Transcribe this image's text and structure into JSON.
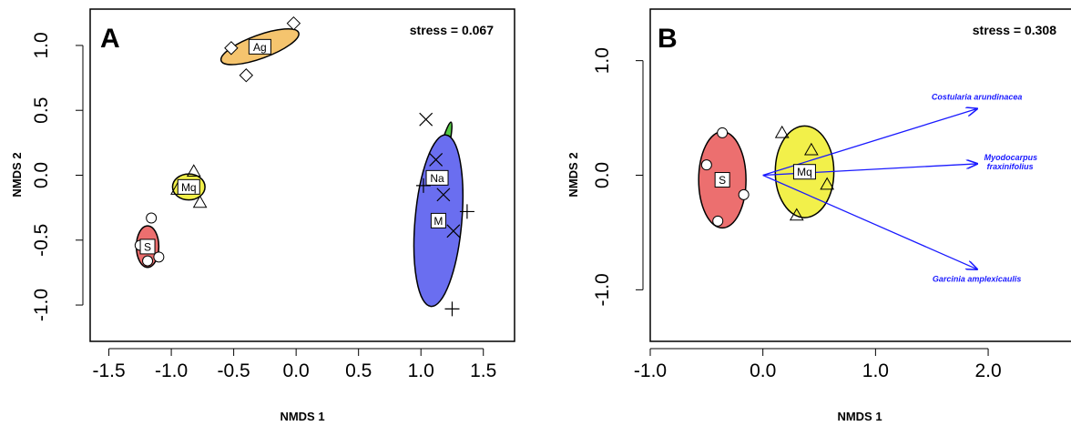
{
  "chart_data": [
    {
      "type": "scatter",
      "panel_label": "A",
      "stress": "stress = 0.067",
      "xlabel": "NMDS 1",
      "ylabel": "NMDS 2",
      "xlim": [
        -1.65,
        1.75
      ],
      "ylim": [
        -1.28,
        1.28
      ],
      "x_ticks": [
        -1.5,
        -1.0,
        -0.5,
        0.0,
        0.5,
        1.0,
        1.5
      ],
      "x_tick_labels": [
        "-1.5",
        "-1.0",
        "-0.5",
        "0.0",
        "0.5",
        "1.0",
        "1.5"
      ],
      "y_ticks": [
        -1.0,
        -0.5,
        0.0,
        0.5,
        1.0
      ],
      "y_tick_labels": [
        "-1.0",
        "-0.5",
        "0.0",
        "0.5",
        "1.0"
      ],
      "groups": [
        {
          "label": "Ag",
          "color": "#f5c46e",
          "marker": "diamond",
          "center": [
            -0.29,
            0.99
          ],
          "ellipse_rx": 0.33,
          "ellipse_ry": 0.09,
          "ellipse_angle": 20,
          "points": [
            [
              -0.02,
              1.17
            ],
            [
              -0.52,
              0.98
            ],
            [
              -0.4,
              0.77
            ]
          ]
        },
        {
          "label": "Mq",
          "color": "#f2f04a",
          "marker": "triangle",
          "center": [
            -0.86,
            -0.09
          ],
          "ellipse_rx": 0.13,
          "ellipse_ry": 0.1,
          "ellipse_angle": 0,
          "points": [
            [
              -0.82,
              0.03
            ],
            [
              -0.95,
              -0.11
            ],
            [
              -0.77,
              -0.21
            ]
          ]
        },
        {
          "label": "S",
          "color": "#ec6f6f",
          "marker": "circle",
          "center": [
            -1.19,
            -0.55
          ],
          "ellipse_rx": 0.09,
          "ellipse_ry": 0.16,
          "ellipse_angle": 0,
          "points": [
            [
              -1.16,
              -0.33
            ],
            [
              -1.25,
              -0.54
            ],
            [
              -1.1,
              -0.63
            ],
            [
              -1.19,
              -0.66
            ]
          ]
        },
        {
          "label": "Na",
          "color": "#55c945",
          "marker": "x",
          "center": [
            1.13,
            -0.02
          ],
          "ellipse_rx": 0.46,
          "ellipse_ry": 0.04,
          "ellipse_angle": 76,
          "points": [
            [
              1.04,
              0.43
            ],
            [
              1.12,
              0.12
            ],
            [
              1.18,
              -0.15
            ],
            [
              1.26,
              -0.43
            ]
          ]
        },
        {
          "label": "M",
          "color": "#6a6ef0",
          "marker": "plus",
          "center": [
            1.14,
            -0.35
          ],
          "ellipse_rx": 0.69,
          "ellipse_ry": 0.18,
          "ellipse_angle": 85,
          "points": [
            [
              1.02,
              -0.08
            ],
            [
              1.37,
              -0.28
            ],
            [
              1.25,
              -1.03
            ]
          ]
        }
      ]
    },
    {
      "type": "scatter",
      "panel_label": "B",
      "stress": "stress = 0.308",
      "xlabel": "NMDS 1",
      "ylabel": "NMDS 2",
      "xlim": [
        -1.0,
        2.8
      ],
      "ylim": [
        -1.45,
        1.45
      ],
      "x_ticks": [
        -1.0,
        0.0,
        1.0,
        2.0
      ],
      "x_tick_labels": [
        "-1.0",
        "0.0",
        "1.0",
        "2.0"
      ],
      "y_ticks": [
        -1.0,
        0.0,
        1.0
      ],
      "y_tick_labels": [
        "-1.0",
        "0.0",
        "1.0"
      ],
      "groups": [
        {
          "label": "S",
          "color": "#ec6f6f",
          "marker": "circle",
          "center": [
            -0.36,
            -0.04
          ],
          "ellipse_rx": 0.21,
          "ellipse_ry": 0.42,
          "ellipse_angle": 0,
          "points": [
            [
              -0.36,
              0.37
            ],
            [
              -0.5,
              0.09
            ],
            [
              -0.17,
              -0.17
            ],
            [
              -0.4,
              -0.4
            ]
          ]
        },
        {
          "label": "Mq",
          "color": "#f2f04a",
          "marker": "triangle",
          "center": [
            0.37,
            0.03
          ],
          "ellipse_rx": 0.26,
          "ellipse_ry": 0.4,
          "ellipse_angle": 0,
          "points": [
            [
              0.17,
              0.37
            ],
            [
              0.43,
              0.22
            ],
            [
              0.57,
              -0.08
            ],
            [
              0.3,
              -0.35
            ]
          ]
        }
      ],
      "vectors": [
        {
          "name": "Costularia arundinacea",
          "x": 1.9,
          "y": 0.58
        },
        {
          "name": "Myodocarpus fraxinifolius",
          "name_lines": [
            "Myodocarpus",
            "fraxinifolius"
          ],
          "x": 1.9,
          "y": 0.1
        },
        {
          "name": "Garcinia amplexicaulis",
          "x": 1.9,
          "y": -0.82
        }
      ],
      "vector_color": "#1a1aff"
    }
  ]
}
